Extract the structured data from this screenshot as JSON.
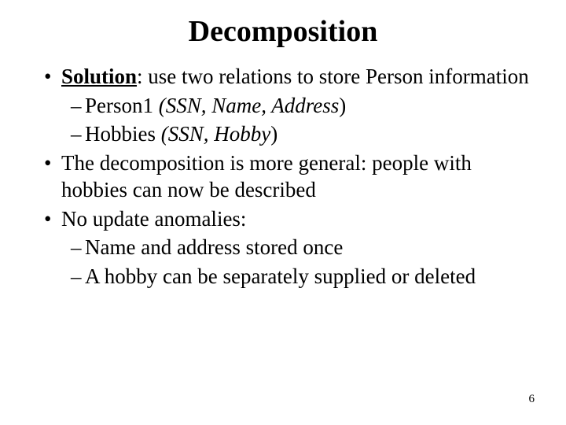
{
  "title": "Decomposition",
  "b1_a_pre": "Solution",
  "b1_a_mid": ": use two relations to store ",
  "b1_a_person": "Person",
  "b1_a_post": " information",
  "b2_a_name": "Person1",
  "b2_a_attrs": " (SSN, Name, Address",
  "b2_a_close": ")",
  "b2_b_name": "Hobbies",
  "b2_b_attrs": " (SSN, Hobby",
  "b2_b_close": ")",
  "b1_b": "The decomposition is more general: people with hobbies can now be described",
  "b1_c": "No update anomalies:",
  "b2_c": "Name and address stored once",
  "b2_d": "A hobby  can  be separately supplied or deleted",
  "page": "6",
  "colors": {
    "text": "#000000",
    "bg": "#ffffff"
  },
  "fontsizes": {
    "title": 38,
    "body": 27,
    "pagenum": 15
  }
}
